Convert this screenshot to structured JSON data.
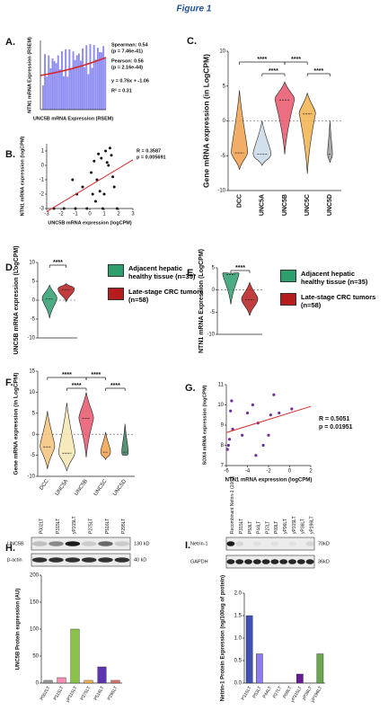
{
  "title": "Figure 1",
  "panels": [
    {
      "label": "A.",
      "ylabel": "NTN1 mRNA Expression (RSEM)",
      "xlabel": "UNC5B mRNA Expression (RSEM)",
      "stats": [
        "Spearman: 0.54",
        "(p = 7.46e-41)",
        "Pearson: 0.56",
        "(p = 2.16e-44)",
        "y = 0.76x + -1.06",
        "R² = 0.31"
      ]
    },
    {
      "label": "B.",
      "ylabel": "NTN1 mRNA expression (logCPM)",
      "xlabel": "UNC5B mRNA expression (logCPM)",
      "stats": [
        "R = 0.3587",
        "p = 0.005691"
      ],
      "xlim": [
        -3,
        3
      ],
      "ylim": [
        -3,
        1.5
      ],
      "xticks": [
        -3,
        -2,
        -1,
        0,
        1,
        2,
        3
      ],
      "yticks": [
        -3,
        -2,
        -1,
        0,
        1
      ],
      "x": [
        -2.5,
        -1.8,
        -1.2,
        -0.9,
        -0.5,
        -0.2,
        0.1,
        0.3,
        0.5,
        0.6,
        0.8,
        1.0,
        1.1,
        1.3,
        1.5,
        1.7,
        1.9,
        0.2,
        0.9,
        1.4,
        -1,
        0.4,
        1.2,
        1.6,
        0.7
      ],
      "y": [
        -3,
        -3,
        -1,
        -2,
        -1.5,
        -3,
        -0.5,
        0.3,
        -1,
        0.8,
        0.5,
        -2,
        1,
        0,
        0.7,
        -1.5,
        -3,
        -2,
        -3,
        1.2,
        -3,
        -2.5,
        0.2,
        -0.8,
        -1.8
      ],
      "color": "#111111",
      "fit_color": "#d62728"
    },
    {
      "label": "C.",
      "ylabel": "Gene mRNA expression (in LogCPM)",
      "categories": [
        "DCC",
        "UNC5A",
        "UNC5B",
        "UNC5C",
        "UNC5D"
      ],
      "colors": [
        "#f0a04b",
        "#c9d9e8",
        "#e8566b",
        "#f2b24d",
        "#9e9e9e"
      ],
      "ylim": [
        -10,
        10
      ],
      "yticks": [
        -10,
        -5,
        0,
        5,
        10
      ],
      "significance": [
        "****",
        "****",
        "****",
        "****"
      ]
    },
    {
      "label": "D.",
      "ylabel": "UNC5B mRNA expression (LogCPM)",
      "ylim": [
        -10,
        10
      ],
      "yticks": [
        -10,
        -5,
        0,
        5,
        10
      ],
      "significance": "****",
      "legend": [
        {
          "name": "Adjacent hepatic healthy tissue (n=35)",
          "color": "#2e9e6e"
        },
        {
          "name": "Late-stage CRC tumors (n=58)",
          "color": "#b71c1c"
        }
      ]
    },
    {
      "label": "E.",
      "ylabel": "NTN1 mRNA Expression (LogCPM)",
      "ylim": [
        -10,
        5
      ],
      "yticks": [
        -10,
        -5,
        0,
        5
      ],
      "significance": "****",
      "legend": [
        {
          "name": "Adjacent hepatic healthy tissue (n=35)",
          "color": "#2e9e6e"
        },
        {
          "name": "Late-stage CRC tumors (n=58)",
          "color": "#b71c1c"
        }
      ]
    },
    {
      "label": "F.",
      "ylabel": "Gene mRNA expression (in LogCPM)",
      "categories": [
        "DCC",
        "UNC5A",
        "UNC5B",
        "UNC5C",
        "UNC5D"
      ],
      "colors": [
        "#f5c27a",
        "#f5e6b0",
        "#e8566b",
        "#f2a04b",
        "#3a7d5a"
      ],
      "ylim": [
        -10,
        15
      ],
      "yticks": [
        -10,
        -5,
        0,
        5,
        10,
        15
      ],
      "significance": [
        "****",
        "****",
        "****",
        "****"
      ]
    },
    {
      "label": "G.",
      "ylabel": "SOX4 mRNA expression (logCPM)",
      "xlabel": "NTN1 mRNA expression (logCPM)",
      "stats": [
        "R = 0.5051",
        "p = 0.01951"
      ],
      "xlim": [
        -6,
        2
      ],
      "ylim": [
        7,
        11
      ],
      "xticks": [
        -6,
        -4,
        -2,
        0,
        2
      ],
      "yticks": [
        7,
        8,
        9,
        10,
        11
      ],
      "x": [
        -5.8,
        -5.7,
        -5.6,
        -5.5,
        -5.4,
        -4.5,
        -4,
        -3.5,
        -3,
        -2.5,
        -2,
        -1.8,
        -1.5,
        -1,
        0.2,
        -5.9,
        -3.2
      ],
      "y": [
        8,
        8.3,
        9.7,
        10.2,
        8.8,
        8.5,
        9.6,
        10,
        9.1,
        8,
        8.5,
        9.5,
        10.5,
        9.6,
        9.8,
        7.8,
        7.5
      ],
      "color": "#7030a0",
      "fit_color": "#d62728"
    },
    {
      "label": "H.",
      "lanes": [
        "P002LT",
        "P315LT",
        "yP315LT",
        "P275LT",
        "P516LT",
        "P295LT"
      ],
      "blot_rows": [
        "UNC5B",
        "β-actin"
      ],
      "markers": [
        "130 kD",
        "40 kD"
      ],
      "ylabel": "UNC5B Protein expression (AU)",
      "categories": [
        "P002LT",
        "P315LT",
        "yP315LT",
        "P275LT",
        "P516LT",
        "P295LT"
      ],
      "values": [
        5,
        10,
        100,
        5,
        30,
        5
      ],
      "colors": [
        "#9e9e9e",
        "#f48fb1",
        "#8bc34a",
        "#ffb74d",
        "#5e35b1",
        "#e57373"
      ],
      "ylim": [
        0,
        200
      ],
      "yticks": [
        0,
        50,
        100,
        150,
        200
      ]
    },
    {
      "label": "I.",
      "lanes": [
        "Recombinant Netrin-1 (10ng)",
        "P315LT",
        "P53LT",
        "P44LT",
        "P27LT",
        "P09LT",
        "yP96LT",
        "yP315LT",
        "yP36LT",
        "yP196LT"
      ],
      "blot_rows": [
        "Netrin-1",
        "GAPDH"
      ],
      "markers": [
        "70kD",
        "36kD"
      ],
      "ylabel": "Netrin-1 Protein Expression (ng/100ug of protein)",
      "categories": [
        "P315LT",
        "P53LT",
        "P44LT",
        "P27LT",
        "P09LT",
        "yP315LT",
        "yP36LT",
        "yP196LT"
      ],
      "values": [
        1.5,
        0.65,
        0,
        0,
        0,
        0.2,
        0,
        0.65
      ],
      "colors": [
        "#3f51b5",
        "#8c7cf0",
        "#9e9e9e",
        "#9e9e9e",
        "#9e9e9e",
        "#6a1b9a",
        "#9e9e9e",
        "#6aa84f"
      ],
      "ylim": [
        0,
        2
      ],
      "yticks": [
        {
          "value": 0,
          "label": "0.0"
        },
        {
          "value": 0.5,
          "label": "0.5"
        },
        {
          "value": 1,
          "label": "1.0"
        },
        {
          "value": 1.5,
          "label": "1.5"
        },
        {
          "value": 2,
          "label": "2.0"
        }
      ]
    }
  ]
}
